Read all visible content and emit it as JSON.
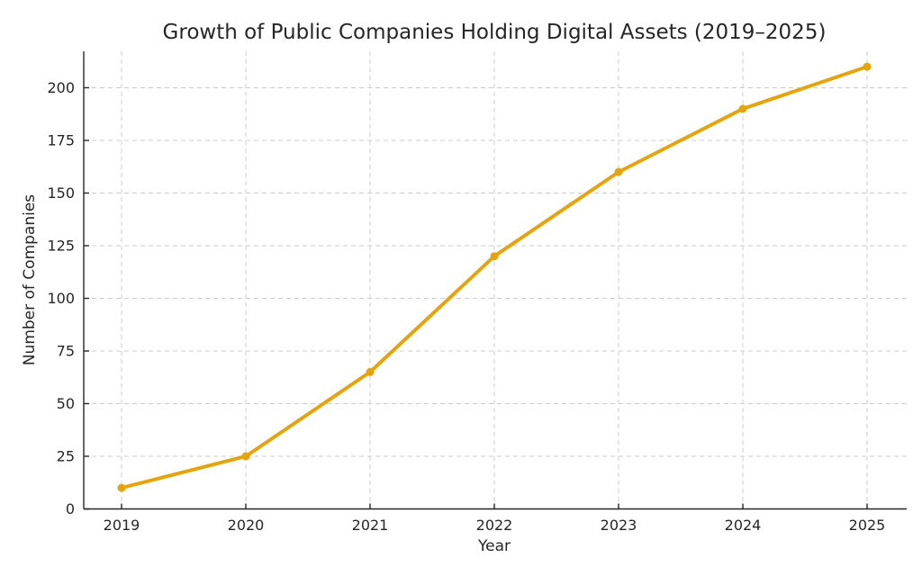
{
  "chart_data": {
    "type": "line",
    "title": "Growth of Public Companies Holding Digital Assets (2019–2025)",
    "xlabel": "Year",
    "ylabel": "Number of Companies",
    "x": [
      2019,
      2020,
      2021,
      2022,
      2023,
      2024,
      2025
    ],
    "values": [
      10,
      25,
      65,
      120,
      160,
      190,
      210
    ],
    "xticks": [
      "2019",
      "2020",
      "2021",
      "2022",
      "2023",
      "2024",
      "2025"
    ],
    "yticks": [
      0,
      25,
      50,
      75,
      100,
      125,
      150,
      175,
      200
    ],
    "ylim": [
      0,
      217.5
    ],
    "xlim": [
      2018.7,
      2025.3
    ],
    "grid": true,
    "grid_style": "dashed",
    "legend": false,
    "marker": "circle",
    "colors": {
      "line": "#E6A40C",
      "marker": "#E6A40C",
      "grid": "#cccccc",
      "spine": "#262626",
      "text": "#262626",
      "background": "#ffffff"
    }
  }
}
